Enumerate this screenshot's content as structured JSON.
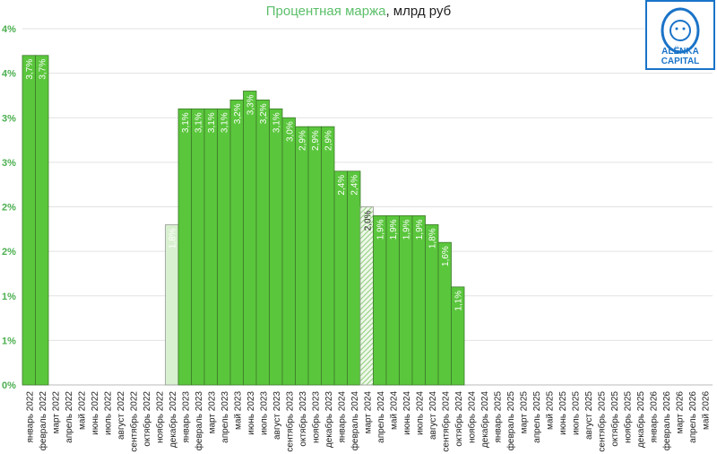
{
  "title_main": "Процентная маржа",
  "title_rest": ", млрд руб",
  "logo": {
    "line1": "ALËNKA",
    "line2": "CAPITAL"
  },
  "colors": {
    "bar": "#5ac63c",
    "bar_border": "#3d7a2a",
    "pale": "#d8f0d0",
    "axis_label": "#4caf50"
  },
  "chart_data": {
    "type": "bar",
    "title": "Процентная маржа, млрд руб",
    "ylim": [
      0,
      4
    ],
    "yticks": [
      0,
      0.5,
      1,
      1.5,
      2,
      2.5,
      3,
      3.5,
      4
    ],
    "ytick_labels": [
      "0%",
      "1%",
      "1%",
      "2%",
      "2%",
      "3%",
      "3%",
      "4%",
      "4%"
    ],
    "grid": true,
    "categories": [
      "январь 2022",
      "февраль 2022",
      "март 2022",
      "апрель 2022",
      "май 2022",
      "июнь 2022",
      "июль 2022",
      "август 2022",
      "сентябрь 2022",
      "октябрь 2022",
      "ноябрь 2022",
      "декабрь 2022",
      "январь 2023",
      "февраль 2023",
      "март 2023",
      "апрель 2023",
      "май 2023",
      "июнь 2023",
      "июль 2023",
      "август 2023",
      "сентябрь 2023",
      "октябрь 2023",
      "ноябрь 2023",
      "декабрь 2023",
      "январь 2024",
      "февраль 2024",
      "март 2024",
      "апрель 2024",
      "май 2024",
      "июнь 2024",
      "июль 2024",
      "август 2024",
      "сентябрь 2024",
      "октябрь 2024",
      "ноябрь 2024",
      "декабрь 2024",
      "январь 2025",
      "февраль 2025",
      "март 2025",
      "апрель 2025",
      "май 2025",
      "июнь 2025",
      "июль 2025",
      "август 2025",
      "сентябрь 2025",
      "октябрь 2025",
      "ноябрь 2025",
      "декабрь 2025",
      "январь 2026",
      "февраль 2026",
      "март 2026",
      "апрель 2026",
      "май 2026"
    ],
    "values": [
      3.7,
      3.7,
      null,
      null,
      null,
      null,
      null,
      null,
      null,
      null,
      null,
      1.8,
      3.1,
      3.1,
      3.1,
      3.1,
      3.2,
      3.3,
      3.2,
      3.1,
      3.0,
      2.9,
      2.9,
      2.9,
      2.4,
      2.4,
      2.0,
      1.9,
      1.9,
      1.9,
      1.9,
      1.8,
      1.6,
      1.1,
      null,
      null,
      null,
      null,
      null,
      null,
      null,
      null,
      null,
      null,
      null,
      null,
      null,
      null,
      null,
      null,
      null,
      null,
      null
    ],
    "labels": [
      "3,7%",
      "3,7%",
      null,
      null,
      null,
      null,
      null,
      null,
      null,
      null,
      null,
      "1,8%",
      "3,1%",
      "3,1%",
      "3,1%",
      "3,1%",
      "3,2%",
      "3,3%",
      "3,2%",
      "3,1%",
      "3,0%",
      "2,9%",
      "2,9%",
      "2,9%",
      "2,4%",
      "2,4%",
      "2,0%",
      "1,9%",
      "1,9%",
      "1,9%",
      "1,9%",
      "1,8%",
      "1,6%",
      "1,1%",
      null,
      null,
      null,
      null,
      null,
      null,
      null,
      null,
      null,
      null,
      null,
      null,
      null,
      null,
      null,
      null,
      null,
      null,
      null
    ],
    "styles": {
      "11": "pale",
      "26": "hatched"
    }
  }
}
